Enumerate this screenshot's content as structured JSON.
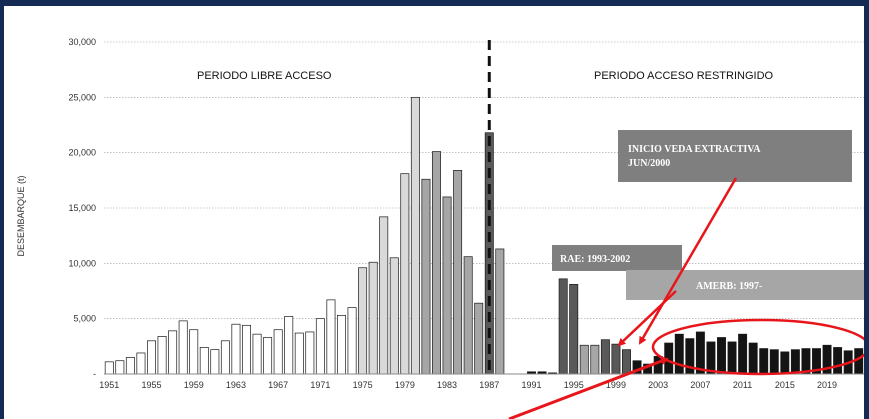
{
  "chart_data": {
    "type": "bar",
    "ylabel": "DESEMBARQUE (t)",
    "xlabel": "",
    "title": "",
    "ylim": [
      0,
      30000
    ],
    "y_ticks": [
      "-",
      "5,000",
      "10,000",
      "15,000",
      "20,000",
      "25,000",
      "30,000"
    ],
    "y_tick_values": [
      0,
      5000,
      10000,
      15000,
      20000,
      25000,
      30000
    ],
    "x_tick_labels": [
      "1951",
      "1955",
      "1959",
      "1963",
      "1967",
      "1971",
      "1975",
      "1979",
      "1983",
      "1987",
      "1991",
      "1995",
      "1999",
      "2003",
      "2007",
      "2011",
      "2015",
      "2019"
    ],
    "grid": true,
    "periods": {
      "left": "PERIODO LIBRE ACCESO",
      "right": "PERIODO  ACCESO RESTRINGIDO",
      "divider_year": 1987
    },
    "annotations": [
      {
        "id": "veda",
        "lines": [
          "INICIO VEDA EXTRACTIVA",
          "JUN/2000"
        ]
      },
      {
        "id": "rae",
        "lines": [
          "RAE: 1993-2002"
        ]
      },
      {
        "id": "amerb",
        "lines": [
          "AMERB: 1997-"
        ]
      }
    ],
    "series_colors": {
      "white": "#ffffff",
      "light": "#d9d9d9",
      "medium": "#a6a6a6",
      "dark": "#595959",
      "black": "#141414"
    },
    "accent_color": "#e8161b",
    "callout_color": "#7f7f7f",
    "years": [
      1951,
      1952,
      1953,
      1954,
      1955,
      1956,
      1957,
      1958,
      1959,
      1960,
      1961,
      1962,
      1963,
      1964,
      1965,
      1966,
      1967,
      1968,
      1969,
      1970,
      1971,
      1972,
      1973,
      1974,
      1975,
      1976,
      1977,
      1978,
      1979,
      1980,
      1981,
      1982,
      1983,
      1984,
      1985,
      1986,
      1987,
      1988,
      1989,
      1990,
      1991,
      1992,
      1993,
      1994,
      1995,
      1996,
      1997,
      1998,
      1999,
      2000,
      2001,
      2002,
      2003,
      2004,
      2005,
      2006,
      2007,
      2008,
      2009,
      2010,
      2011,
      2012,
      2013,
      2014,
      2015,
      2016,
      2017,
      2018,
      2019,
      2020,
      2021,
      2022
    ],
    "values": [
      1100,
      1200,
      1500,
      1900,
      3000,
      3400,
      3900,
      4800,
      4000,
      2400,
      2200,
      3000,
      4500,
      4400,
      3600,
      3300,
      4000,
      5200,
      3700,
      3800,
      5000,
      6700,
      5300,
      6000,
      9600,
      10100,
      14200,
      10500,
      18100,
      25000,
      17600,
      20100,
      16000,
      18400,
      10600,
      6400,
      21800,
      11300,
      null,
      null,
      200,
      200,
      100,
      8600,
      8100,
      2600,
      2600,
      3100,
      2700,
      2200,
      1200,
      900,
      1600,
      2800,
      3600,
      3200,
      3800,
      2900,
      3300,
      2900,
      3600,
      2800,
      2300,
      2200,
      2000,
      2200,
      2300,
      2300,
      2600,
      2400,
      2100,
      2300
    ],
    "shades": [
      "white",
      "white",
      "white",
      "white",
      "white",
      "white",
      "white",
      "white",
      "white",
      "white",
      "white",
      "white",
      "white",
      "white",
      "white",
      "white",
      "white",
      "white",
      "white",
      "white",
      "white",
      "white",
      "white",
      "white",
      "light",
      "light",
      "light",
      "light",
      "light",
      "light",
      "medium",
      "medium",
      "medium",
      "medium",
      "medium",
      "medium",
      "dark",
      "medium",
      null,
      null,
      "black",
      "black",
      "black",
      "dark",
      "dark",
      "medium",
      "medium",
      "dark",
      "dark",
      "dark",
      "black",
      "black",
      "black",
      "black",
      "black",
      "black",
      "black",
      "black",
      "black",
      "black",
      "black",
      "black",
      "black",
      "black",
      "black",
      "black",
      "black",
      "black",
      "black",
      "black",
      "black",
      "black"
    ]
  }
}
